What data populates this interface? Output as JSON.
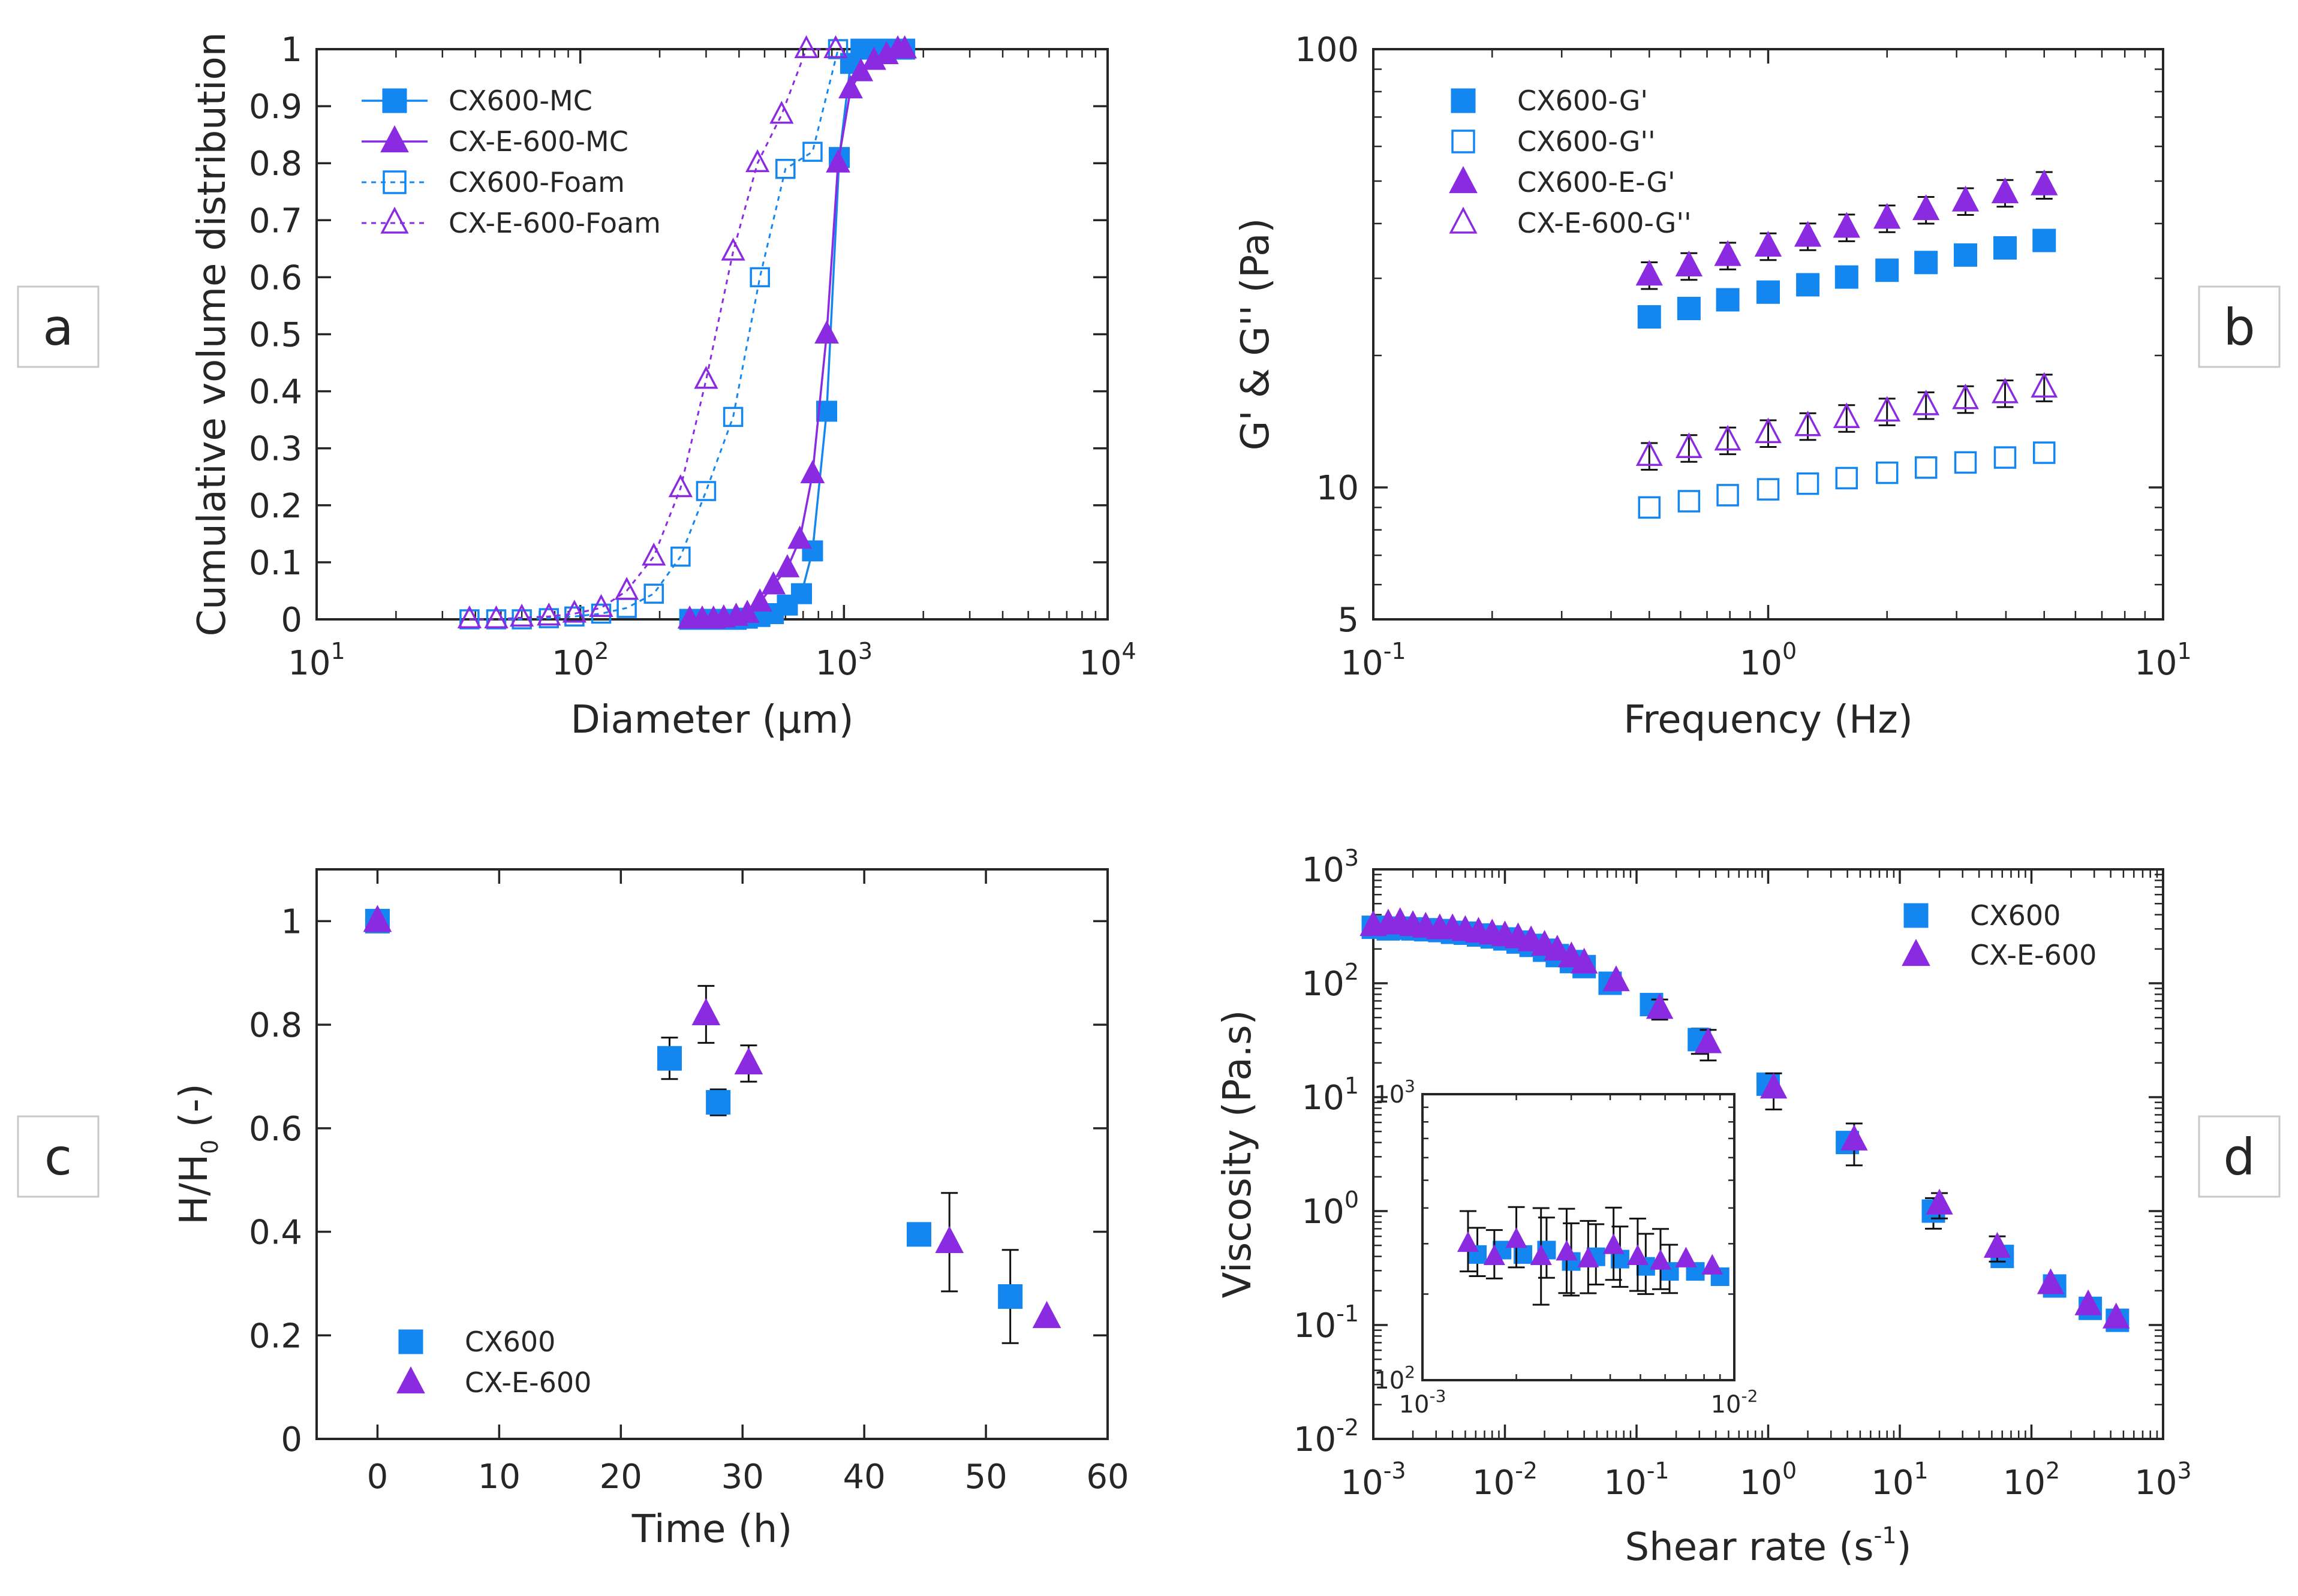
{
  "colors": {
    "blue": "#1486F0",
    "purple": "#8A2BE2",
    "axis": "#262626"
  },
  "panel_letters": [
    "a",
    "b",
    "c",
    "d"
  ],
  "chart_data": [
    {
      "id": "a",
      "type": "line",
      "xscale": "log",
      "xlabel": "Diameter (μm)",
      "ylabel": "Cumulative volume distribution",
      "xlim": [
        10,
        10000
      ],
      "ylim": [
        0,
        1
      ],
      "xticks": [
        {
          "base": "10",
          "exp": "1"
        },
        {
          "base": "10",
          "exp": "2"
        },
        {
          "base": "10",
          "exp": "3"
        },
        {
          "base": "10",
          "exp": "4"
        }
      ],
      "yticks": [
        "0",
        "0.1",
        "0.2",
        "0.3",
        "0.4",
        "0.5",
        "0.6",
        "0.7",
        "0.8",
        "0.9",
        "1"
      ],
      "legend_position": "top-left",
      "series": [
        {
          "name": "CX600-MC",
          "marker": "square",
          "filled": true,
          "line": "solid",
          "color": "blue",
          "x": [
            260,
            290,
            320,
            350,
            390,
            430,
            480,
            540,
            610,
            690,
            760,
            860,
            960,
            1060,
            1160,
            1300,
            1450,
            1600,
            1700
          ],
          "y": [
            0,
            0,
            0,
            0,
            0,
            0.002,
            0.005,
            0.01,
            0.025,
            0.045,
            0.12,
            0.365,
            0.81,
            0.975,
            1,
            1,
            1,
            1,
            1
          ]
        },
        {
          "name": "CX-E-600-MC",
          "marker": "triangle",
          "filled": true,
          "line": "solid",
          "color": "purple",
          "x": [
            260,
            290,
            320,
            350,
            390,
            430,
            480,
            540,
            610,
            680,
            760,
            860,
            950,
            1060,
            1160,
            1300,
            1450,
            1600,
            1700
          ],
          "y": [
            0,
            0,
            0,
            0.002,
            0.005,
            0.01,
            0.03,
            0.06,
            0.09,
            0.14,
            0.255,
            0.5,
            0.8,
            0.93,
            0.96,
            0.98,
            0.99,
            1,
            1
          ]
        },
        {
          "name": "CX600-Foam",
          "marker": "square",
          "filled": false,
          "line": "dotted",
          "color": "blue",
          "x": [
            38,
            48,
            60,
            76,
            95,
            120,
            150,
            190,
            240,
            300,
            380,
            480,
            600,
            760,
            950
          ],
          "y": [
            0,
            0,
            0,
            0.002,
            0.005,
            0.01,
            0.02,
            0.045,
            0.11,
            0.225,
            0.355,
            0.6,
            0.79,
            0.82,
            1
          ]
        },
        {
          "name": "CX-E-600-Foam",
          "marker": "triangle",
          "filled": false,
          "line": "dotted",
          "color": "purple",
          "x": [
            38,
            48,
            60,
            76,
            95,
            120,
            150,
            190,
            240,
            300,
            380,
            470,
            580,
            720,
            930
          ],
          "y": [
            0,
            0,
            0.003,
            0.005,
            0.01,
            0.02,
            0.05,
            0.11,
            0.23,
            0.42,
            0.645,
            0.8,
            0.885,
            1,
            1
          ]
        }
      ]
    },
    {
      "id": "b",
      "type": "scatter",
      "xscale": "log",
      "yscale": "log",
      "xlabel": "Frequency (Hz)",
      "ylabel": "G' & G'' (Pa)",
      "xlim": [
        0.1,
        10
      ],
      "ylim": [
        5,
        100
      ],
      "xticks": [
        {
          "base": "10",
          "exp": "-1"
        },
        {
          "base": "10",
          "exp": "0"
        },
        {
          "base": "10",
          "exp": "1"
        }
      ],
      "yticks": [
        "5",
        "10",
        "100"
      ],
      "legend_position": "top-left",
      "x": [
        0.5,
        0.63,
        0.79,
        1.0,
        1.26,
        1.58,
        2.0,
        2.51,
        3.16,
        3.98,
        5.0
      ],
      "series": [
        {
          "name": "CX600-G'",
          "marker": "square",
          "filled": true,
          "color": "blue",
          "values": [
            24.5,
            25.6,
            26.8,
            27.9,
            29.0,
            30.2,
            31.3,
            32.6,
            33.9,
            35.2,
            36.6
          ]
        },
        {
          "name": "CX600-G''",
          "marker": "square",
          "filled": false,
          "color": "blue",
          "values": [
            9.0,
            9.3,
            9.6,
            9.9,
            10.2,
            10.5,
            10.8,
            11.1,
            11.4,
            11.7,
            12.0
          ]
        },
        {
          "name": "CX600-E-G'",
          "marker": "triangle",
          "filled": true,
          "color": "purple",
          "values": [
            30.5,
            32.0,
            33.8,
            35.5,
            37.4,
            39.2,
            41.1,
            43.0,
            45.0,
            47.0,
            49.0
          ]
        },
        {
          "name": "CX-E-600-G''",
          "marker": "triangle",
          "filled": false,
          "color": "purple",
          "values": [
            11.8,
            12.3,
            12.8,
            13.3,
            13.8,
            14.4,
            14.9,
            15.4,
            15.9,
            16.4,
            16.9
          ]
        }
      ]
    },
    {
      "id": "c",
      "type": "scatter",
      "xlabel": "Time (h)",
      "ylabel": "H/H",
      "ylabel_sub": "0",
      "ylabel_suffix": " (-)",
      "xlim": [
        -5,
        60
      ],
      "ylim": [
        0,
        1.1
      ],
      "xticks": [
        "0",
        "10",
        "20",
        "30",
        "40",
        "50",
        "60"
      ],
      "yticks": [
        "0",
        "0.2",
        "0.4",
        "0.6",
        "0.8",
        "1"
      ],
      "legend_position": "bottom-left",
      "series": [
        {
          "name": "CX600",
          "marker": "square",
          "filled": true,
          "color": "blue",
          "x": [
            0,
            24,
            28,
            44.5,
            52
          ],
          "y": [
            1.0,
            0.735,
            0.65,
            0.395,
            0.275
          ],
          "err": [
            0,
            0.04,
            0.025,
            0.02,
            0.09
          ]
        },
        {
          "name": "CX-E-600",
          "marker": "triangle",
          "filled": true,
          "color": "purple",
          "x": [
            0,
            27,
            30.5,
            47,
            55
          ],
          "y": [
            1.0,
            0.82,
            0.725,
            0.38,
            0.235
          ],
          "err": [
            0,
            0.055,
            0.035,
            0.095,
            0
          ]
        }
      ]
    },
    {
      "id": "d",
      "type": "scatter",
      "xscale": "log",
      "yscale": "log",
      "xlabel": "Shear rate (s",
      "xlabel_sup": "-1",
      "xlabel_suffix": ")",
      "ylabel": "Viscosity (Pa.s)",
      "xlim": [
        0.001,
        1000
      ],
      "ylim": [
        0.01,
        1000
      ],
      "xticks": [
        {
          "base": "10",
          "exp": "-3"
        },
        {
          "base": "10",
          "exp": "-2"
        },
        {
          "base": "10",
          "exp": "-1"
        },
        {
          "base": "10",
          "exp": "0"
        },
        {
          "base": "10",
          "exp": "1"
        },
        {
          "base": "10",
          "exp": "2"
        },
        {
          "base": "10",
          "exp": "3"
        }
      ],
      "yticks": [
        {
          "base": "10",
          "exp": "-2"
        },
        {
          "base": "10",
          "exp": "-1"
        },
        {
          "base": "10",
          "exp": "0"
        },
        {
          "base": "10",
          "exp": "1"
        },
        {
          "base": "10",
          "exp": "2"
        },
        {
          "base": "10",
          "exp": "3"
        }
      ],
      "legend_position": "top-right",
      "series": [
        {
          "name": "CX600",
          "marker": "square",
          "filled": true,
          "color": "blue",
          "x": [
            0.001,
            0.0013,
            0.0016,
            0.002,
            0.0025,
            0.0032,
            0.004,
            0.005,
            0.0063,
            0.008,
            0.01,
            0.0126,
            0.0158,
            0.02,
            0.025,
            0.032,
            0.04,
            0.063,
            0.13,
            0.3,
            1.0,
            4.0,
            18,
            60,
            150,
            280,
            450
          ],
          "y": [
            310,
            300,
            305,
            300,
            295,
            290,
            280,
            275,
            265,
            255,
            245,
            230,
            215,
            195,
            175,
            155,
            140,
            100,
            65,
            32,
            13,
            4,
            1.0,
            0.4,
            0.22,
            0.14,
            0.11
          ],
          "err": [
            0,
            0,
            0,
            0,
            0,
            0,
            0,
            0,
            0,
            0,
            0,
            0,
            0,
            0,
            0,
            0,
            0,
            0,
            0.15,
            0.25,
            0,
            0,
            0.3,
            0,
            0,
            0,
            0
          ]
        },
        {
          "name": "CX-E-600",
          "marker": "triangle",
          "filled": true,
          "color": "purple",
          "x": [
            0.001,
            0.0013,
            0.0016,
            0.002,
            0.0025,
            0.0032,
            0.004,
            0.005,
            0.0063,
            0.008,
            0.01,
            0.0126,
            0.0158,
            0.02,
            0.025,
            0.032,
            0.04,
            0.07,
            0.15,
            0.35,
            1.1,
            4.5,
            20,
            55,
            140,
            270,
            440
          ],
          "y": [
            320,
            330,
            340,
            320,
            310,
            300,
            300,
            290,
            280,
            270,
            260,
            250,
            235,
            215,
            195,
            170,
            150,
            105,
            60,
            30,
            12,
            4.2,
            1.15,
            0.48,
            0.23,
            0.15,
            0.115
          ],
          "err": [
            0,
            0,
            0,
            0,
            0,
            0,
            0,
            0,
            0,
            0,
            0,
            0,
            0,
            0,
            0,
            0,
            0,
            0,
            0.2,
            0.3,
            0.35,
            0.4,
            0.25,
            0.25,
            0,
            0,
            0
          ]
        }
      ]
    }
  ],
  "inset_d": {
    "xscale": "log",
    "yscale": "log",
    "xlim": [
      0.001,
      0.01
    ],
    "ylim": [
      100,
      1000
    ],
    "xticks": [
      {
        "base": "10",
        "exp": "-3"
      },
      {
        "base": "10",
        "exp": "-2"
      }
    ],
    "yticks": [
      {
        "base": "10",
        "exp": "2"
      },
      {
        "base": "10",
        "exp": "3"
      }
    ],
    "series": [
      {
        "marker": "square",
        "color": "blue",
        "x": [
          0.0015,
          0.0018,
          0.0021,
          0.0025,
          0.003,
          0.0036,
          0.0043,
          0.0052,
          0.0062,
          0.0075,
          0.009
        ],
        "y": [
          275,
          285,
          275,
          285,
          260,
          270,
          265,
          250,
          240,
          240,
          230
        ],
        "err": [
          0.04,
          0,
          0,
          0.05,
          0.06,
          0.05,
          0.05,
          0.05,
          0.04,
          0,
          0
        ]
      },
      {
        "marker": "triangle",
        "color": "purple",
        "x": [
          0.0014,
          0.0017,
          0.002,
          0.0024,
          0.0029,
          0.0034,
          0.0041,
          0.0049,
          0.0058,
          0.007,
          0.0085
        ],
        "y": [
          300,
          270,
          310,
          270,
          280,
          265,
          295,
          270,
          260,
          265,
          250
        ],
        "err": [
          0.05,
          0.04,
          0.05,
          0.08,
          0.07,
          0.06,
          0.06,
          0.06,
          0.05,
          0,
          0
        ]
      }
    ]
  }
}
